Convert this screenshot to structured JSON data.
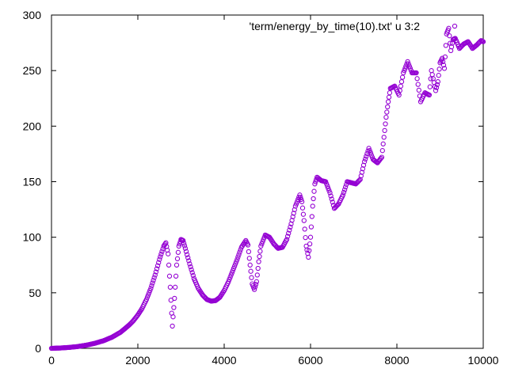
{
  "chart_data": {
    "type": "scatter",
    "title": "",
    "xlabel": "",
    "ylabel": "",
    "xlim": [
      0,
      10000
    ],
    "ylim": [
      0,
      300
    ],
    "xticks": [
      0,
      2000,
      4000,
      6000,
      8000,
      10000
    ],
    "yticks": [
      0,
      50,
      100,
      150,
      200,
      250,
      300
    ],
    "xtick_labels": [
      "0",
      "2000",
      "4000",
      "6000",
      "8000",
      "10000"
    ],
    "ytick_labels": [
      "0",
      "50",
      "100",
      "150",
      "200",
      "250",
      "300"
    ],
    "grid": false,
    "legend_position": "top-right",
    "marker": "open-circle",
    "series": [
      {
        "name": "'term/energy_by_time(10).txt' u 3:2",
        "color": "#9400d3",
        "points": [
          [
            0,
            0
          ],
          [
            200,
            0.3
          ],
          [
            400,
            0.8
          ],
          [
            600,
            1.6
          ],
          [
            800,
            2.8
          ],
          [
            1000,
            4.5
          ],
          [
            1200,
            6.8
          ],
          [
            1400,
            10
          ],
          [
            1600,
            14.5
          ],
          [
            1800,
            21
          ],
          [
            1900,
            25
          ],
          [
            2000,
            30
          ],
          [
            2100,
            36
          ],
          [
            2200,
            44
          ],
          [
            2300,
            54
          ],
          [
            2400,
            66
          ],
          [
            2500,
            80
          ],
          [
            2600,
            92
          ],
          [
            2650,
            95
          ],
          [
            2700,
            85
          ],
          [
            2750,
            55
          ],
          [
            2800,
            20
          ],
          [
            2850,
            45
          ],
          [
            2900,
            75
          ],
          [
            2950,
            92
          ],
          [
            3000,
            98
          ],
          [
            3050,
            97
          ],
          [
            3100,
            90
          ],
          [
            3200,
            76
          ],
          [
            3300,
            63
          ],
          [
            3400,
            54
          ],
          [
            3500,
            48
          ],
          [
            3600,
            44
          ],
          [
            3700,
            42.5
          ],
          [
            3800,
            43
          ],
          [
            3900,
            46
          ],
          [
            4000,
            52
          ],
          [
            4100,
            60
          ],
          [
            4200,
            70
          ],
          [
            4300,
            80
          ],
          [
            4400,
            91
          ],
          [
            4500,
            97
          ],
          [
            4550,
            93
          ],
          [
            4600,
            75
          ],
          [
            4650,
            58
          ],
          [
            4700,
            53
          ],
          [
            4750,
            60
          ],
          [
            4800,
            78
          ],
          [
            4850,
            92
          ],
          [
            4950,
            102
          ],
          [
            5050,
            100
          ],
          [
            5150,
            94
          ],
          [
            5250,
            90
          ],
          [
            5350,
            91
          ],
          [
            5450,
            98
          ],
          [
            5550,
            112
          ],
          [
            5650,
            128
          ],
          [
            5750,
            138
          ],
          [
            5800,
            132
          ],
          [
            5850,
            115
          ],
          [
            5900,
            92
          ],
          [
            5950,
            82
          ],
          [
            6000,
            100
          ],
          [
            6050,
            128
          ],
          [
            6100,
            148
          ],
          [
            6150,
            154
          ],
          [
            6250,
            151
          ],
          [
            6350,
            150
          ],
          [
            6450,
            140
          ],
          [
            6550,
            126
          ],
          [
            6650,
            130
          ],
          [
            6750,
            138
          ],
          [
            6850,
            150
          ],
          [
            6950,
            149
          ],
          [
            7050,
            148
          ],
          [
            7150,
            152
          ],
          [
            7250,
            168
          ],
          [
            7350,
            180
          ],
          [
            7450,
            170
          ],
          [
            7550,
            167
          ],
          [
            7650,
            172
          ],
          [
            7700,
            190
          ],
          [
            7750,
            208
          ],
          [
            7800,
            222
          ],
          [
            7850,
            234
          ],
          [
            7950,
            236
          ],
          [
            8050,
            228
          ],
          [
            8150,
            248
          ],
          [
            8250,
            258
          ],
          [
            8350,
            248
          ],
          [
            8450,
            248
          ],
          [
            8550,
            222
          ],
          [
            8650,
            230
          ],
          [
            8750,
            228
          ],
          [
            8800,
            250
          ],
          [
            8900,
            232
          ],
          [
            8950,
            240
          ],
          [
            9000,
            257
          ],
          [
            9050,
            261
          ],
          [
            9100,
            252
          ],
          [
            9150,
            283
          ],
          [
            9200,
            288
          ],
          [
            9250,
            268
          ],
          [
            9300,
            278
          ],
          [
            9350,
            279
          ],
          [
            9450,
            270
          ],
          [
            9550,
            274
          ],
          [
            9650,
            276
          ],
          [
            9750,
            270
          ],
          [
            9850,
            273
          ],
          [
            9950,
            277
          ],
          [
            10000,
            276
          ]
        ]
      }
    ]
  }
}
